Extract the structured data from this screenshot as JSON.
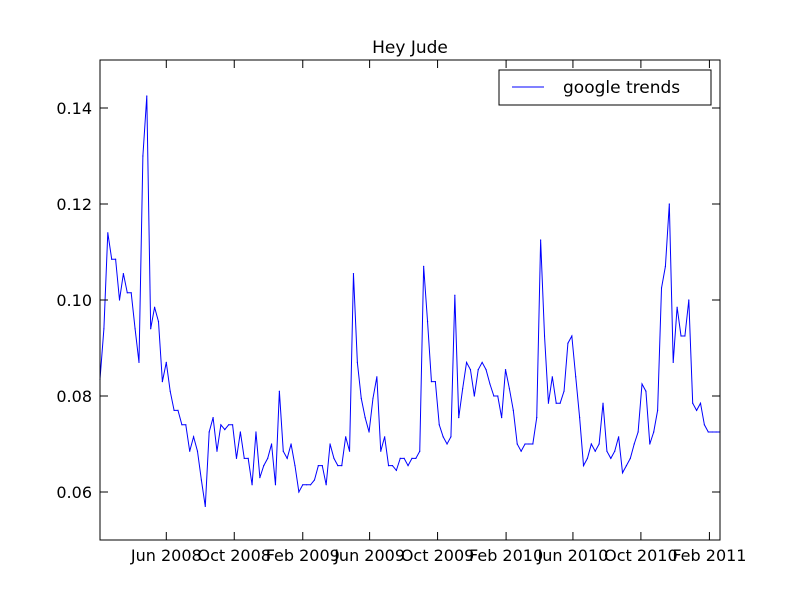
{
  "chart_data": {
    "type": "line",
    "title": "Hey Jude",
    "xlabel": "",
    "ylabel": "",
    "ylim": [
      0.05,
      0.15
    ],
    "xlim": [
      "2008-02-03",
      "2011-02-20"
    ],
    "yticks": [
      0.06,
      0.08,
      0.1,
      0.12,
      0.14
    ],
    "ytick_labels": [
      "0.06",
      "0.08",
      "0.10",
      "0.12",
      "0.14"
    ],
    "xticks": [
      {
        "date": "2008-06-01",
        "label": "Jun 2008"
      },
      {
        "date": "2008-10-01",
        "label": "Oct 2008"
      },
      {
        "date": "2009-02-01",
        "label": "Feb 2009"
      },
      {
        "date": "2009-06-01",
        "label": "Jun 2009"
      },
      {
        "date": "2009-10-01",
        "label": "Oct 2009"
      },
      {
        "date": "2010-02-01",
        "label": "Feb 2010"
      },
      {
        "date": "2010-06-01",
        "label": "Jun 2010"
      },
      {
        "date": "2010-10-01",
        "label": "Oct 2010"
      },
      {
        "date": "2011-02-01",
        "label": "Feb 2011"
      }
    ],
    "grid": false,
    "legend": {
      "position": "top-right"
    },
    "series": [
      {
        "name": "google trends",
        "color": "#0000ff",
        "x": [
          "2008-02-03",
          "2008-02-10",
          "2008-02-17",
          "2008-02-24",
          "2008-03-02",
          "2008-03-09",
          "2008-03-16",
          "2008-03-23",
          "2008-03-30",
          "2008-04-06",
          "2008-04-13",
          "2008-04-20",
          "2008-04-27",
          "2008-05-04",
          "2008-05-11",
          "2008-05-18",
          "2008-05-25",
          "2008-06-01",
          "2008-06-08",
          "2008-06-15",
          "2008-06-22",
          "2008-06-29",
          "2008-07-06",
          "2008-07-13",
          "2008-07-20",
          "2008-07-27",
          "2008-08-03",
          "2008-08-10",
          "2008-08-17",
          "2008-08-24",
          "2008-08-31",
          "2008-09-07",
          "2008-09-14",
          "2008-09-21",
          "2008-09-28",
          "2008-10-05",
          "2008-10-12",
          "2008-10-19",
          "2008-10-26",
          "2008-11-02",
          "2008-11-09",
          "2008-11-16",
          "2008-11-23",
          "2008-11-30",
          "2008-12-07",
          "2008-12-14",
          "2008-12-21",
          "2008-12-28",
          "2009-01-04",
          "2009-01-11",
          "2009-01-18",
          "2009-01-25",
          "2009-02-01",
          "2009-02-08",
          "2009-02-15",
          "2009-02-22",
          "2009-03-01",
          "2009-03-08",
          "2009-03-15",
          "2009-03-22",
          "2009-03-29",
          "2009-04-05",
          "2009-04-12",
          "2009-04-19",
          "2009-04-26",
          "2009-05-03",
          "2009-05-10",
          "2009-05-17",
          "2009-05-24",
          "2009-05-31",
          "2009-06-07",
          "2009-06-14",
          "2009-06-21",
          "2009-06-28",
          "2009-07-05",
          "2009-07-12",
          "2009-07-19",
          "2009-07-26",
          "2009-08-02",
          "2009-08-09",
          "2009-08-16",
          "2009-08-23",
          "2009-08-30",
          "2009-09-06",
          "2009-09-13",
          "2009-09-20",
          "2009-09-27",
          "2009-10-04",
          "2009-10-11",
          "2009-10-18",
          "2009-10-25",
          "2009-11-01",
          "2009-11-08",
          "2009-11-15",
          "2009-11-22",
          "2009-11-29",
          "2009-12-06",
          "2009-12-13",
          "2009-12-20",
          "2009-12-27",
          "2010-01-03",
          "2010-01-10",
          "2010-01-17",
          "2010-01-24",
          "2010-01-31",
          "2010-02-07",
          "2010-02-14",
          "2010-02-21",
          "2010-02-28",
          "2010-03-07",
          "2010-03-14",
          "2010-03-21",
          "2010-03-28",
          "2010-04-04",
          "2010-04-11",
          "2010-04-18",
          "2010-04-25",
          "2010-05-02",
          "2010-05-09",
          "2010-05-16",
          "2010-05-23",
          "2010-05-30",
          "2010-06-06",
          "2010-06-13",
          "2010-06-20",
          "2010-06-27",
          "2010-07-04",
          "2010-07-11",
          "2010-07-18",
          "2010-07-25",
          "2010-08-01",
          "2010-08-08",
          "2010-08-15",
          "2010-08-22",
          "2010-08-29",
          "2010-09-05",
          "2010-09-12",
          "2010-09-19",
          "2010-09-26",
          "2010-10-03",
          "2010-10-10",
          "2010-10-17",
          "2010-10-24",
          "2010-10-31",
          "2010-11-07",
          "2010-11-14",
          "2010-11-21",
          "2010-11-28",
          "2010-12-05",
          "2010-12-12",
          "2010-12-19",
          "2010-12-26",
          "2011-01-02",
          "2011-01-09",
          "2011-01-16",
          "2011-01-23",
          "2011-01-30",
          "2011-02-06",
          "2011-02-13",
          "2011-02-20"
        ],
        "y": [
          0.0835,
          0.094,
          0.114,
          0.1085,
          0.1085,
          0.1,
          0.1055,
          0.1015,
          0.1015,
          0.094,
          0.087,
          0.13,
          0.1425,
          0.094,
          0.0985,
          0.0955,
          0.083,
          0.087,
          0.081,
          0.077,
          0.077,
          0.074,
          0.074,
          0.0685,
          0.0715,
          0.0685,
          0.0625,
          0.057,
          0.0725,
          0.0755,
          0.0685,
          0.074,
          0.073,
          0.074,
          0.074,
          0.067,
          0.0725,
          0.067,
          0.067,
          0.0615,
          0.0725,
          0.063,
          0.0655,
          0.067,
          0.07,
          0.0615,
          0.081,
          0.0685,
          0.067,
          0.07,
          0.0655,
          0.06,
          0.0615,
          0.0615,
          0.0615,
          0.0625,
          0.0655,
          0.0655,
          0.0615,
          0.07,
          0.067,
          0.0655,
          0.0655,
          0.0715,
          0.0685,
          0.1055,
          0.087,
          0.0795,
          0.0755,
          0.0725,
          0.0795,
          0.084,
          0.0685,
          0.0715,
          0.0655,
          0.0655,
          0.0645,
          0.067,
          0.067,
          0.0655,
          0.067,
          0.067,
          0.0685,
          0.107,
          0.0955,
          0.083,
          0.083,
          0.074,
          0.0715,
          0.07,
          0.0715,
          0.101,
          0.0755,
          0.0815,
          0.087,
          0.0855,
          0.08,
          0.0855,
          0.087,
          0.0855,
          0.0825,
          0.08,
          0.08,
          0.0755,
          0.0855,
          0.0815,
          0.077,
          0.07,
          0.0685,
          0.07,
          0.07,
          0.07,
          0.0755,
          0.1125,
          0.0925,
          0.0785,
          0.084,
          0.0785,
          0.0785,
          0.081,
          0.091,
          0.0925,
          0.084,
          0.0755,
          0.0655,
          0.067,
          0.07,
          0.0685,
          0.07,
          0.0785,
          0.0685,
          0.067,
          0.0685,
          0.0715,
          0.064,
          0.0655,
          0.067,
          0.07,
          0.0725,
          0.0825,
          0.081,
          0.07,
          0.0725,
          0.077,
          0.1025,
          0.107,
          0.12,
          0.087,
          0.0985,
          0.0925,
          0.0925,
          0.1,
          0.0785,
          0.077,
          0.0785,
          0.074,
          0.0725,
          0.0725,
          0.0725,
          0.0725
        ]
      }
    ]
  }
}
